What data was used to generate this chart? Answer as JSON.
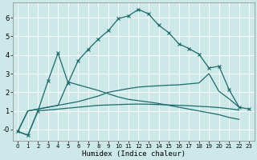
{
  "title": "",
  "xlabel": "Humidex (Indice chaleur)",
  "bg_color": "#cde8e8",
  "grid_color": "#ffffff",
  "line_color": "#1a6b6b",
  "xlim": [
    -0.5,
    23.5
  ],
  "ylim": [
    -0.6,
    6.8
  ],
  "xticks": [
    0,
    1,
    2,
    3,
    4,
    5,
    6,
    7,
    8,
    9,
    10,
    11,
    12,
    13,
    14,
    15,
    16,
    17,
    18,
    19,
    20,
    21,
    22,
    23
  ],
  "yticks": [
    0,
    1,
    2,
    3,
    4,
    5,
    6
  ],
  "ytick_labels": [
    "-0",
    "1",
    "2",
    "3",
    "4",
    "5",
    "6"
  ],
  "series": [
    {
      "x": [
        0,
        1,
        2,
        3,
        4,
        5,
        6,
        7,
        8,
        9,
        10,
        11,
        12,
        13,
        14,
        15,
        16,
        17,
        18,
        19,
        20,
        21,
        22,
        23
      ],
      "y": [
        -0.1,
        -0.3,
        1.0,
        2.6,
        4.1,
        2.5,
        3.7,
        4.3,
        4.85,
        5.3,
        5.95,
        6.1,
        6.45,
        6.2,
        5.6,
        5.2,
        4.6,
        4.35,
        4.05,
        3.3,
        3.4,
        2.15,
        1.2,
        1.1
      ],
      "marker": "x",
      "markersize": 3,
      "linewidth": 0.9,
      "linestyle": "-"
    },
    {
      "x": [
        0,
        1,
        2,
        3,
        4,
        5,
        6,
        7,
        8,
        9,
        10,
        11,
        12,
        13,
        14,
        15,
        16,
        17,
        18,
        19,
        20,
        21,
        22
      ],
      "y": [
        -0.1,
        1.0,
        1.1,
        1.2,
        1.3,
        1.4,
        1.5,
        1.65,
        1.8,
        2.0,
        2.1,
        2.2,
        2.28,
        2.32,
        2.35,
        2.38,
        2.4,
        2.45,
        2.5,
        3.0,
        2.05,
        1.65,
        1.2
      ],
      "marker": null,
      "markersize": 0,
      "linewidth": 0.9,
      "linestyle": "-"
    },
    {
      "x": [
        0,
        1,
        2,
        3,
        4,
        5,
        6,
        7,
        8,
        9,
        10,
        11,
        12,
        13,
        14,
        15,
        16,
        17,
        18,
        19,
        20,
        21,
        22
      ],
      "y": [
        -0.1,
        1.0,
        1.1,
        1.2,
        1.3,
        2.55,
        2.4,
        2.25,
        2.1,
        1.92,
        1.75,
        1.62,
        1.55,
        1.48,
        1.4,
        1.3,
        1.2,
        1.1,
        1.0,
        0.9,
        0.8,
        0.65,
        0.55
      ],
      "marker": null,
      "markersize": 0,
      "linewidth": 0.9,
      "linestyle": "-"
    },
    {
      "x": [
        0,
        1,
        2,
        3,
        4,
        5,
        6,
        7,
        8,
        9,
        10,
        11,
        12,
        13,
        14,
        15,
        16,
        17,
        18,
        19,
        20,
        21,
        22
      ],
      "y": [
        -0.1,
        -0.3,
        1.0,
        1.05,
        1.1,
        1.15,
        1.2,
        1.25,
        1.3,
        1.32,
        1.34,
        1.36,
        1.37,
        1.36,
        1.34,
        1.32,
        1.3,
        1.28,
        1.25,
        1.22,
        1.18,
        1.12,
        1.05
      ],
      "marker": null,
      "markersize": 0,
      "linewidth": 0.9,
      "linestyle": "-"
    }
  ]
}
